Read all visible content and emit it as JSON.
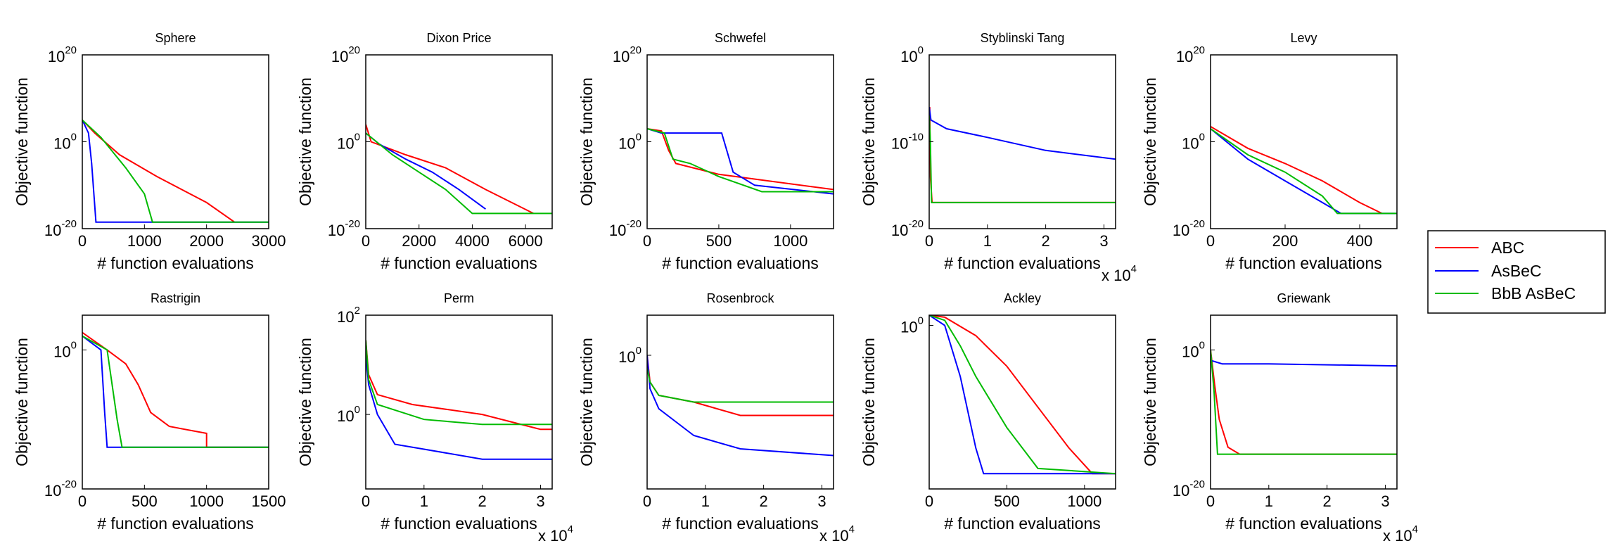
{
  "figure": {
    "colors": {
      "ABC": "#ff0000",
      "AsBeC": "#0000ff",
      "BbB AsBeC": "#00bb00"
    },
    "legend": {
      "placement": "right",
      "entries": [
        "ABC",
        "AsBeC",
        "BbB AsBeC"
      ]
    }
  },
  "chart_data": [
    {
      "type": "line",
      "title": "Sphere",
      "xlabel": "# function evaluations",
      "ylabel": "Objective function",
      "xlim": [
        0,
        3000
      ],
      "xticks": [
        "0",
        "1000",
        "2000",
        "3000"
      ],
      "xticks_val": [
        0,
        1000,
        2000,
        3000
      ],
      "y_scale": "log",
      "ylim_exp": [
        -20,
        20
      ],
      "yticks_exp": [
        -20,
        0,
        20
      ],
      "series": [
        {
          "name": "ABC",
          "points": [
            [
              0,
              5
            ],
            [
              200,
              2
            ],
            [
              600,
              -3
            ],
            [
              1200,
              -8
            ],
            [
              2000,
              -14
            ],
            [
              2450,
              -18.5
            ]
          ]
        },
        {
          "name": "AsBeC",
          "points": [
            [
              0,
              5
            ],
            [
              100,
              2
            ],
            [
              150,
              -5
            ],
            [
              220,
              -18.5
            ],
            [
              3000,
              -18.5
            ]
          ]
        },
        {
          "name": "BbB AsBeC",
          "points": [
            [
              0,
              5
            ],
            [
              300,
              1
            ],
            [
              700,
              -6
            ],
            [
              1000,
              -12
            ],
            [
              1130,
              -18.5
            ],
            [
              3000,
              -18.5
            ]
          ]
        }
      ]
    },
    {
      "type": "line",
      "title": "Dixon Price",
      "xlabel": "# function evaluations",
      "ylabel": "Objective function",
      "xlim": [
        0,
        7000
      ],
      "xticks": [
        "0",
        "2000",
        "4000",
        "6000"
      ],
      "xticks_val": [
        0,
        2000,
        4000,
        6000
      ],
      "y_scale": "log",
      "ylim_exp": [
        -20,
        20
      ],
      "yticks_exp": [
        -20,
        0,
        20
      ],
      "series": [
        {
          "name": "ABC",
          "points": [
            [
              0,
              4
            ],
            [
              200,
              0
            ],
            [
              1500,
              -3
            ],
            [
              3000,
              -6
            ],
            [
              4500,
              -11
            ],
            [
              6300,
              -16.5
            ]
          ]
        },
        {
          "name": "AsBeC",
          "points": [
            [
              0,
              2
            ],
            [
              500,
              -0.5
            ],
            [
              1500,
              -4
            ],
            [
              2500,
              -7
            ],
            [
              3500,
              -11
            ],
            [
              4500,
              -15.5
            ]
          ]
        },
        {
          "name": "BbB AsBeC",
          "points": [
            [
              0,
              2
            ],
            [
              1000,
              -3
            ],
            [
              2000,
              -7
            ],
            [
              3000,
              -11
            ],
            [
              4000,
              -16.5
            ],
            [
              7000,
              -16.5
            ]
          ]
        }
      ]
    },
    {
      "type": "line",
      "title": "Schwefel",
      "xlabel": "# function evaluations",
      "ylabel": "Objective function",
      "xlim": [
        0,
        1300
      ],
      "xticks": [
        "0",
        "500",
        "1000"
      ],
      "xticks_val": [
        0,
        500,
        1000
      ],
      "y_scale": "log",
      "ylim_exp": [
        -20,
        20
      ],
      "yticks_exp": [
        -20,
        0,
        20
      ],
      "series": [
        {
          "name": "ABC",
          "points": [
            [
              0,
              3
            ],
            [
              100,
              2.5
            ],
            [
              150,
              -2
            ],
            [
              200,
              -5
            ],
            [
              500,
              -7.5
            ],
            [
              1300,
              -11
            ]
          ]
        },
        {
          "name": "AsBeC",
          "points": [
            [
              0,
              3
            ],
            [
              100,
              2
            ],
            [
              520,
              2
            ],
            [
              600,
              -7
            ],
            [
              750,
              -10
            ],
            [
              1300,
              -12
            ]
          ]
        },
        {
          "name": "BbB AsBeC",
          "points": [
            [
              0,
              3
            ],
            [
              120,
              2
            ],
            [
              180,
              -4
            ],
            [
              300,
              -5
            ],
            [
              500,
              -8
            ],
            [
              800,
              -11.5
            ],
            [
              1300,
              -11.5
            ]
          ]
        }
      ]
    },
    {
      "type": "line",
      "title": "Styblinski Tang",
      "xlabel": "# function evaluations",
      "ylabel": "Objective function",
      "xlim": [
        0,
        32000
      ],
      "xticks": [
        "0",
        "1",
        "2",
        "3"
      ],
      "xticks_val": [
        0,
        10000,
        20000,
        30000
      ],
      "x_multiplier": "x 10",
      "x_multiplier_exp": "4",
      "y_scale": "log",
      "ylim_exp": [
        -20,
        0
      ],
      "yticks_exp": [
        -20,
        -10,
        0
      ],
      "series": [
        {
          "name": "ABC",
          "points": [
            [
              0,
              -10
            ],
            [
              100,
              -6
            ],
            [
              200,
              -14
            ],
            [
              500,
              -17
            ],
            [
              32000,
              -17
            ]
          ]
        },
        {
          "name": "AsBeC",
          "points": [
            [
              0,
              -6
            ],
            [
              300,
              -7.5
            ],
            [
              3000,
              -8.5
            ],
            [
              10000,
              -9.5
            ],
            [
              20000,
              -11
            ],
            [
              32000,
              -12
            ]
          ]
        },
        {
          "name": "BbB AsBeC",
          "points": [
            [
              0,
              -7
            ],
            [
              200,
              -10
            ],
            [
              400,
              -17
            ],
            [
              32000,
              -17
            ]
          ]
        }
      ]
    },
    {
      "type": "line",
      "title": "Levy",
      "xlabel": "# function evaluations",
      "ylabel": "Objective function",
      "xlim": [
        0,
        500
      ],
      "xticks": [
        "0",
        "200",
        "400"
      ],
      "xticks_val": [
        0,
        200,
        400
      ],
      "y_scale": "log",
      "ylim_exp": [
        -20,
        20
      ],
      "yticks_exp": [
        -20,
        0,
        20
      ],
      "series": [
        {
          "name": "ABC",
          "points": [
            [
              0,
              3.5
            ],
            [
              100,
              -1.5
            ],
            [
              200,
              -5
            ],
            [
              300,
              -9
            ],
            [
              400,
              -14
            ],
            [
              460,
              -16.5
            ]
          ]
        },
        {
          "name": "AsBeC",
          "points": [
            [
              0,
              3
            ],
            [
              100,
              -4
            ],
            [
              200,
              -9
            ],
            [
              300,
              -14
            ],
            [
              350,
              -16.5
            ],
            [
              500,
              -16.5
            ]
          ]
        },
        {
          "name": "BbB AsBeC",
          "points": [
            [
              0,
              3
            ],
            [
              100,
              -3
            ],
            [
              200,
              -7
            ],
            [
              300,
              -12.5
            ],
            [
              340,
              -16.5
            ],
            [
              500,
              -16.5
            ]
          ]
        }
      ]
    },
    {
      "type": "line",
      "title": "Rastrigin",
      "xlabel": "# function evaluations",
      "ylabel": "Objective function",
      "xlim": [
        0,
        1500
      ],
      "xticks": [
        "0",
        "500",
        "1000",
        "1500"
      ],
      "xticks_val": [
        0,
        500,
        1000,
        1500
      ],
      "y_scale": "log",
      "ylim_exp": [
        -20,
        5
      ],
      "yticks_exp": [
        -20,
        0
      ],
      "series": [
        {
          "name": "ABC",
          "points": [
            [
              0,
              2.5
            ],
            [
              200,
              0
            ],
            [
              350,
              -2
            ],
            [
              450,
              -5
            ],
            [
              550,
              -9
            ],
            [
              700,
              -11
            ],
            [
              1000,
              -12
            ],
            [
              1000,
              -14
            ],
            [
              1500,
              -14
            ]
          ]
        },
        {
          "name": "AsBeC",
          "points": [
            [
              0,
              2
            ],
            [
              150,
              0
            ],
            [
              180,
              -9
            ],
            [
              200,
              -14
            ],
            [
              1500,
              -14
            ]
          ]
        },
        {
          "name": "BbB AsBeC",
          "points": [
            [
              0,
              2
            ],
            [
              200,
              0
            ],
            [
              280,
              -10
            ],
            [
              320,
              -14
            ],
            [
              1500,
              -14
            ]
          ]
        }
      ]
    },
    {
      "type": "line",
      "title": "Perm",
      "xlabel": "# function evaluations",
      "ylabel": "Objective function",
      "xlim": [
        0,
        32000
      ],
      "xticks": [
        "0",
        "1",
        "2",
        "3"
      ],
      "xticks_val": [
        0,
        10000,
        20000,
        30000
      ],
      "x_multiplier": "x 10",
      "x_multiplier_exp": "4",
      "y_scale": "log",
      "ylim_exp": [
        -1.5,
        2
      ],
      "yticks_exp": [
        0,
        2
      ],
      "series": [
        {
          "name": "ABC",
          "points": [
            [
              0,
              1.5
            ],
            [
              500,
              0.8
            ],
            [
              2000,
              0.4
            ],
            [
              8000,
              0.2
            ],
            [
              20000,
              0
            ],
            [
              30000,
              -0.3
            ],
            [
              32000,
              -0.3
            ]
          ]
        },
        {
          "name": "AsBeC",
          "points": [
            [
              0,
              1.2
            ],
            [
              500,
              0.6
            ],
            [
              2000,
              0
            ],
            [
              5000,
              -0.6
            ],
            [
              10000,
              -0.7
            ],
            [
              20000,
              -0.9
            ],
            [
              32000,
              -0.9
            ]
          ]
        },
        {
          "name": "BbB AsBeC",
          "points": [
            [
              0,
              1.5
            ],
            [
              500,
              0.7
            ],
            [
              2000,
              0.2
            ],
            [
              10000,
              -0.1
            ],
            [
              20000,
              -0.2
            ],
            [
              30000,
              -0.2
            ],
            [
              32000,
              -0.2
            ]
          ]
        }
      ]
    },
    {
      "type": "line",
      "title": "Rosenbrock",
      "xlabel": "# function evaluations",
      "ylabel": "Objective function",
      "xlim": [
        0,
        32000
      ],
      "xticks": [
        "0",
        "1",
        "2",
        "3"
      ],
      "xticks_val": [
        0,
        10000,
        20000,
        30000
      ],
      "x_multiplier": "x 10",
      "x_multiplier_exp": "4",
      "y_scale": "log",
      "ylim_exp": [
        -10,
        3
      ],
      "yticks_exp": [
        0
      ],
      "series": [
        {
          "name": "ABC",
          "points": [
            [
              0,
              0
            ],
            [
              500,
              -2
            ],
            [
              2000,
              -3
            ],
            [
              8000,
              -3.5
            ],
            [
              16000,
              -4.5
            ],
            [
              32000,
              -4.5
            ]
          ]
        },
        {
          "name": "AsBeC",
          "points": [
            [
              0,
              0
            ],
            [
              500,
              -2.5
            ],
            [
              2000,
              -4
            ],
            [
              8000,
              -6
            ],
            [
              16000,
              -7
            ],
            [
              32000,
              -7.5
            ]
          ]
        },
        {
          "name": "BbB AsBeC",
          "points": [
            [
              0,
              -1
            ],
            [
              500,
              -2
            ],
            [
              2000,
              -3
            ],
            [
              8000,
              -3.5
            ],
            [
              16000,
              -3.5
            ],
            [
              32000,
              -3.5
            ]
          ]
        }
      ]
    },
    {
      "type": "line",
      "title": "Ackley",
      "xlabel": "# function evaluations",
      "ylabel": "Objective function",
      "xlim": [
        0,
        1200
      ],
      "xticks": [
        "0",
        "500",
        "1000"
      ],
      "xticks_val": [
        0,
        500,
        1000
      ],
      "y_scale": "log",
      "ylim_exp": [
        -16,
        1
      ],
      "yticks_exp": [
        0
      ],
      "series": [
        {
          "name": "ABC",
          "points": [
            [
              0,
              1
            ],
            [
              100,
              0.8
            ],
            [
              300,
              -1
            ],
            [
              500,
              -4
            ],
            [
              700,
              -8
            ],
            [
              900,
              -12
            ],
            [
              1050,
              -14.5
            ],
            [
              1200,
              -14.5
            ]
          ]
        },
        {
          "name": "AsBeC",
          "points": [
            [
              0,
              1
            ],
            [
              100,
              0
            ],
            [
              200,
              -5
            ],
            [
              300,
              -12
            ],
            [
              350,
              -14.5
            ],
            [
              1200,
              -14.5
            ]
          ]
        },
        {
          "name": "BbB AsBeC",
          "points": [
            [
              0,
              1
            ],
            [
              100,
              0.5
            ],
            [
              200,
              -2
            ],
            [
              300,
              -5
            ],
            [
              500,
              -10
            ],
            [
              700,
              -14
            ],
            [
              1200,
              -14.5
            ]
          ]
        }
      ]
    },
    {
      "type": "line",
      "title": "Griewank",
      "xlabel": "# function evaluations",
      "ylabel": "Objective function",
      "xlim": [
        0,
        32000
      ],
      "xticks": [
        "0",
        "1",
        "2",
        "3"
      ],
      "xticks_val": [
        0,
        10000,
        20000,
        30000
      ],
      "x_multiplier": "x 10",
      "x_multiplier_exp": "4",
      "y_scale": "log",
      "ylim_exp": [
        -20,
        5
      ],
      "yticks_exp": [
        -20,
        0
      ],
      "series": [
        {
          "name": "ABC",
          "points": [
            [
              0,
              0
            ],
            [
              700,
              -5
            ],
            [
              1500,
              -10
            ],
            [
              3000,
              -14
            ],
            [
              5000,
              -15
            ],
            [
              32000,
              -15
            ]
          ]
        },
        {
          "name": "AsBeC",
          "points": [
            [
              0,
              -1.5
            ],
            [
              2000,
              -2
            ],
            [
              10000,
              -2
            ],
            [
              32000,
              -2.3
            ]
          ]
        },
        {
          "name": "BbB AsBeC",
          "points": [
            [
              0,
              0
            ],
            [
              600,
              -6
            ],
            [
              1200,
              -15
            ],
            [
              32000,
              -15
            ]
          ]
        }
      ]
    }
  ]
}
